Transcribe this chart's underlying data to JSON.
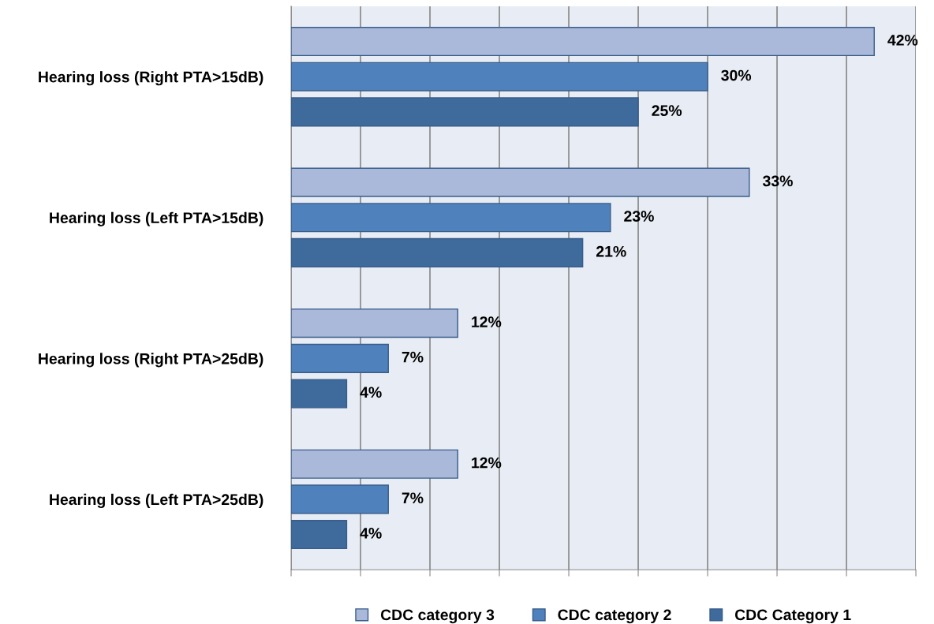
{
  "chart_data": {
    "type": "bar",
    "orientation": "horizontal",
    "categories": [
      "Hearing loss (Right PTA>15dB)",
      "Hearing loss (Left PTA>15dB)",
      "Hearing loss (Right PTA>25dB)",
      "Hearing loss (Left PTA>25dB)"
    ],
    "series": [
      {
        "name": "CDC category 3",
        "color": "#aab9d9",
        "values": [
          42,
          33,
          12,
          12
        ],
        "value_labels": [
          "42%",
          "33%",
          "12%",
          "12%"
        ]
      },
      {
        "name": "CDC category 2",
        "color": "#4f81bd",
        "values": [
          30,
          23,
          7,
          7
        ],
        "value_labels": [
          "30%",
          "23%",
          "7%",
          "7%"
        ]
      },
      {
        "name": "CDC Category 1",
        "color": "#3f6a9c",
        "values": [
          25,
          21,
          4,
          4
        ],
        "value_labels": [
          "25%",
          "21%",
          "4%",
          "4%"
        ]
      }
    ],
    "xlim": [
      0,
      45
    ],
    "xticks": [
      {
        "value": 0,
        "label": null
      },
      {
        "value": 5,
        "label": null
      },
      {
        "value": 10,
        "label": null
      },
      {
        "value": 15,
        "label": null
      },
      {
        "value": 20,
        "label": null
      },
      {
        "value": 25,
        "label": null
      },
      {
        "value": 30,
        "label": null
      },
      {
        "value": 35,
        "label": null
      },
      {
        "value": 40,
        "label": null
      },
      {
        "value": 45,
        "label": null
      }
    ],
    "grid": "x",
    "legend": "bottom",
    "tick_labels": "y"
  }
}
